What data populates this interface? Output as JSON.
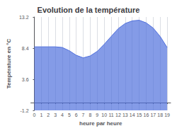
{
  "chart_data": {
    "type": "area",
    "title": "Evolution de la température",
    "xlabel": "heure par heure",
    "ylabel": "Température en °C",
    "x": [
      0,
      1,
      2,
      3,
      4,
      5,
      6,
      7,
      8,
      9,
      10,
      11,
      12,
      13,
      14,
      15,
      16,
      17,
      18,
      19
    ],
    "values": [
      8.6,
      8.6,
      8.6,
      8.6,
      8.5,
      8.0,
      7.3,
      6.9,
      7.2,
      7.9,
      9.0,
      10.2,
      11.4,
      12.2,
      12.6,
      12.7,
      12.3,
      11.5,
      10.2,
      8.5
    ],
    "xlim": [
      -0.5,
      19.5
    ],
    "xticks": [
      0,
      1,
      2,
      3,
      4,
      5,
      6,
      7,
      8,
      9,
      10,
      11,
      12,
      13,
      14,
      15,
      16,
      17,
      18,
      19
    ],
    "ylim": [
      -1.2,
      13.2
    ],
    "yticks": [
      -1.2,
      3.6,
      8.4,
      13.2
    ],
    "grid": "x"
  }
}
